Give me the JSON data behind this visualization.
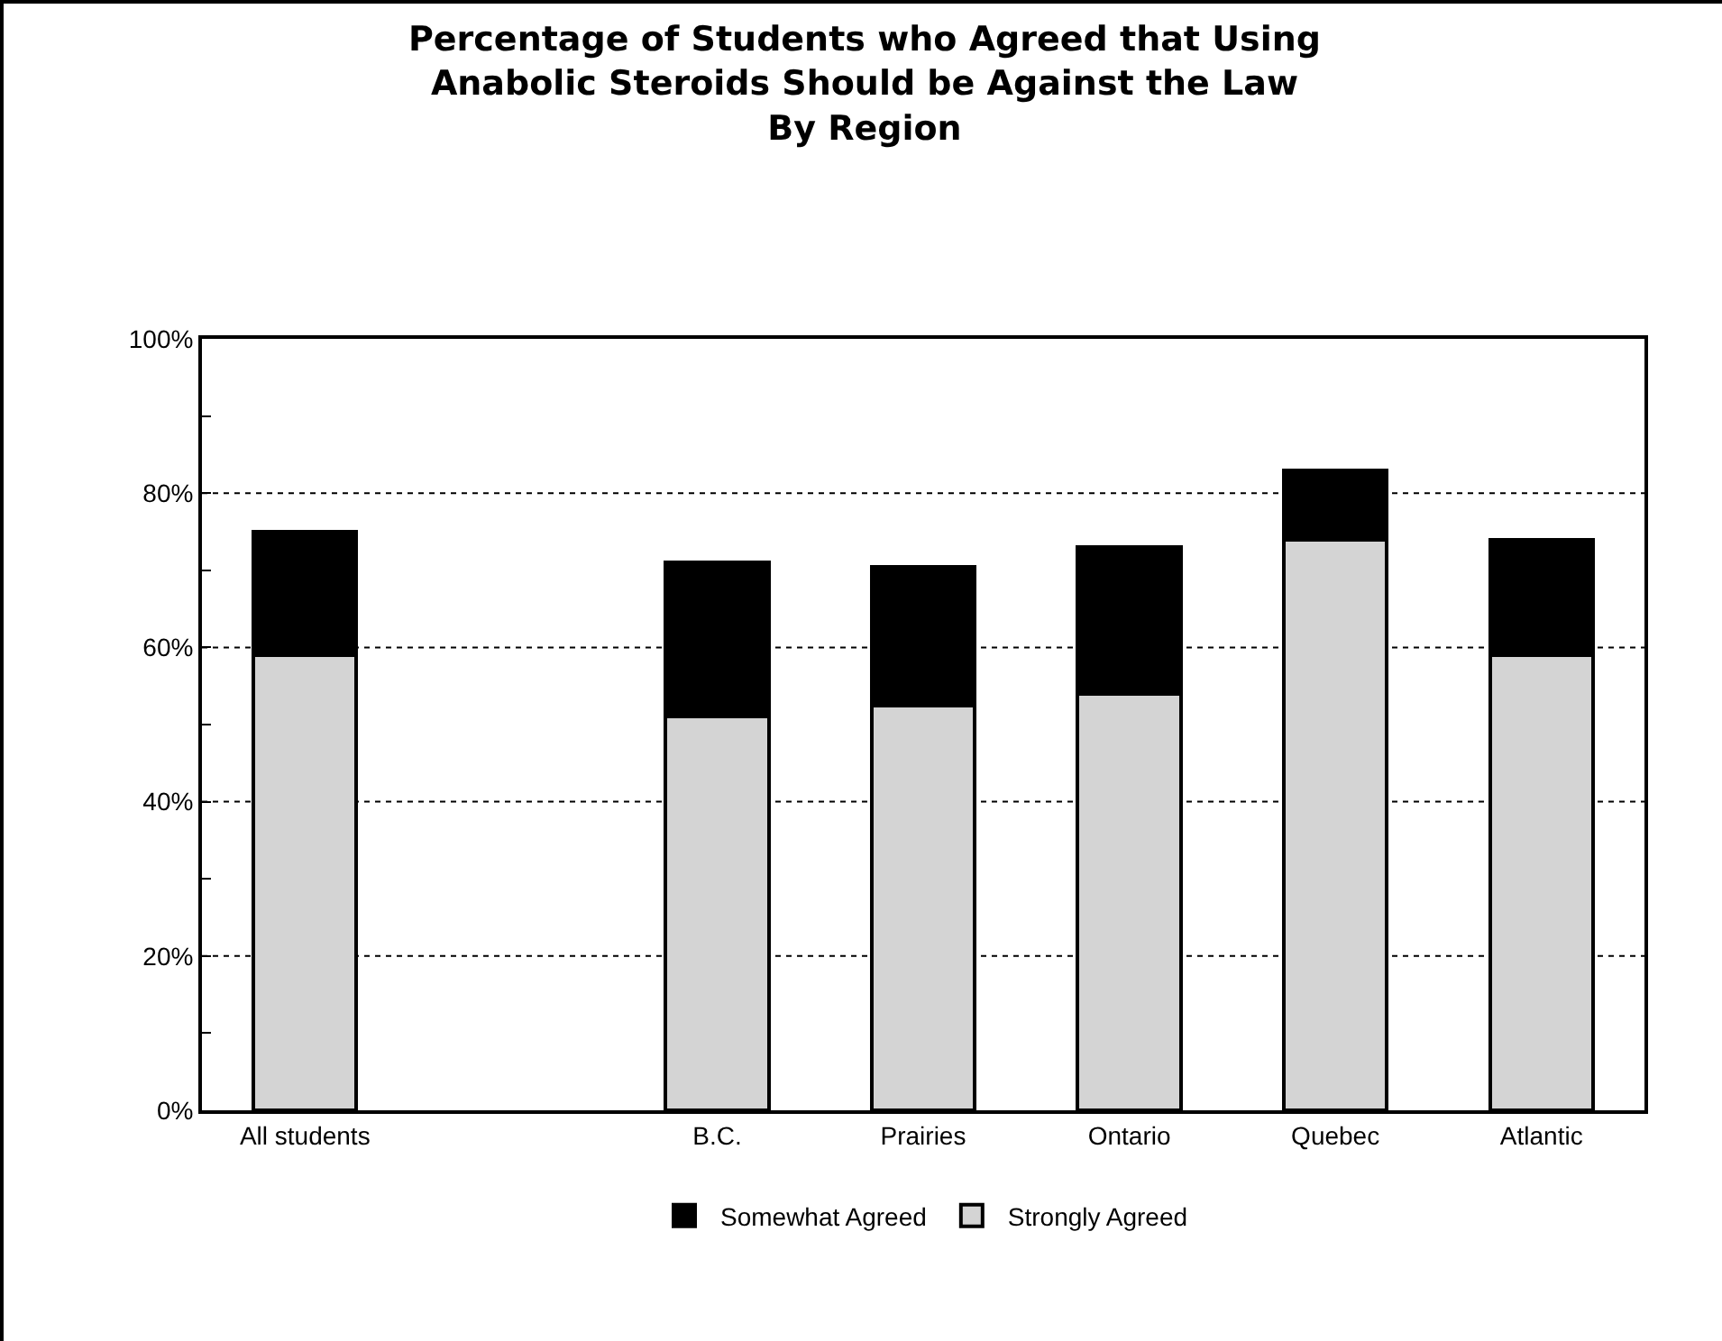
{
  "chart_data": {
    "type": "bar",
    "title": "Percentage of Students who Agreed that Using\nAnabolic Steroids Should be Against the Law\nBy Region",
    "stacked": true,
    "categories": [
      "All students",
      null,
      "B.C.",
      "Prairies",
      "Ontario",
      "Quebec",
      "Atlantic"
    ],
    "series": [
      {
        "name": "Strongly Agreed",
        "color": "#d4d4d4",
        "values": [
          59,
          null,
          51,
          52.5,
          54,
          74,
          59
        ]
      },
      {
        "name": "Somewhat Agreed",
        "color": "#000000",
        "values": [
          16,
          null,
          20,
          18,
          19,
          9,
          15
        ]
      }
    ],
    "ylim": [
      0,
      100
    ],
    "yticks": [
      {
        "value": 0,
        "label": "0%"
      },
      {
        "value": 10,
        "label": null
      },
      {
        "value": 20,
        "label": "20%"
      },
      {
        "value": 30,
        "label": null
      },
      {
        "value": 40,
        "label": "40%"
      },
      {
        "value": 50,
        "label": null
      },
      {
        "value": 60,
        "label": "60%"
      },
      {
        "value": 70,
        "label": null
      },
      {
        "value": 80,
        "label": "80%"
      },
      {
        "value": 90,
        "label": null
      },
      {
        "value": 100,
        "label": "100%"
      }
    ],
    "grid": "y",
    "legend": "bottom"
  }
}
